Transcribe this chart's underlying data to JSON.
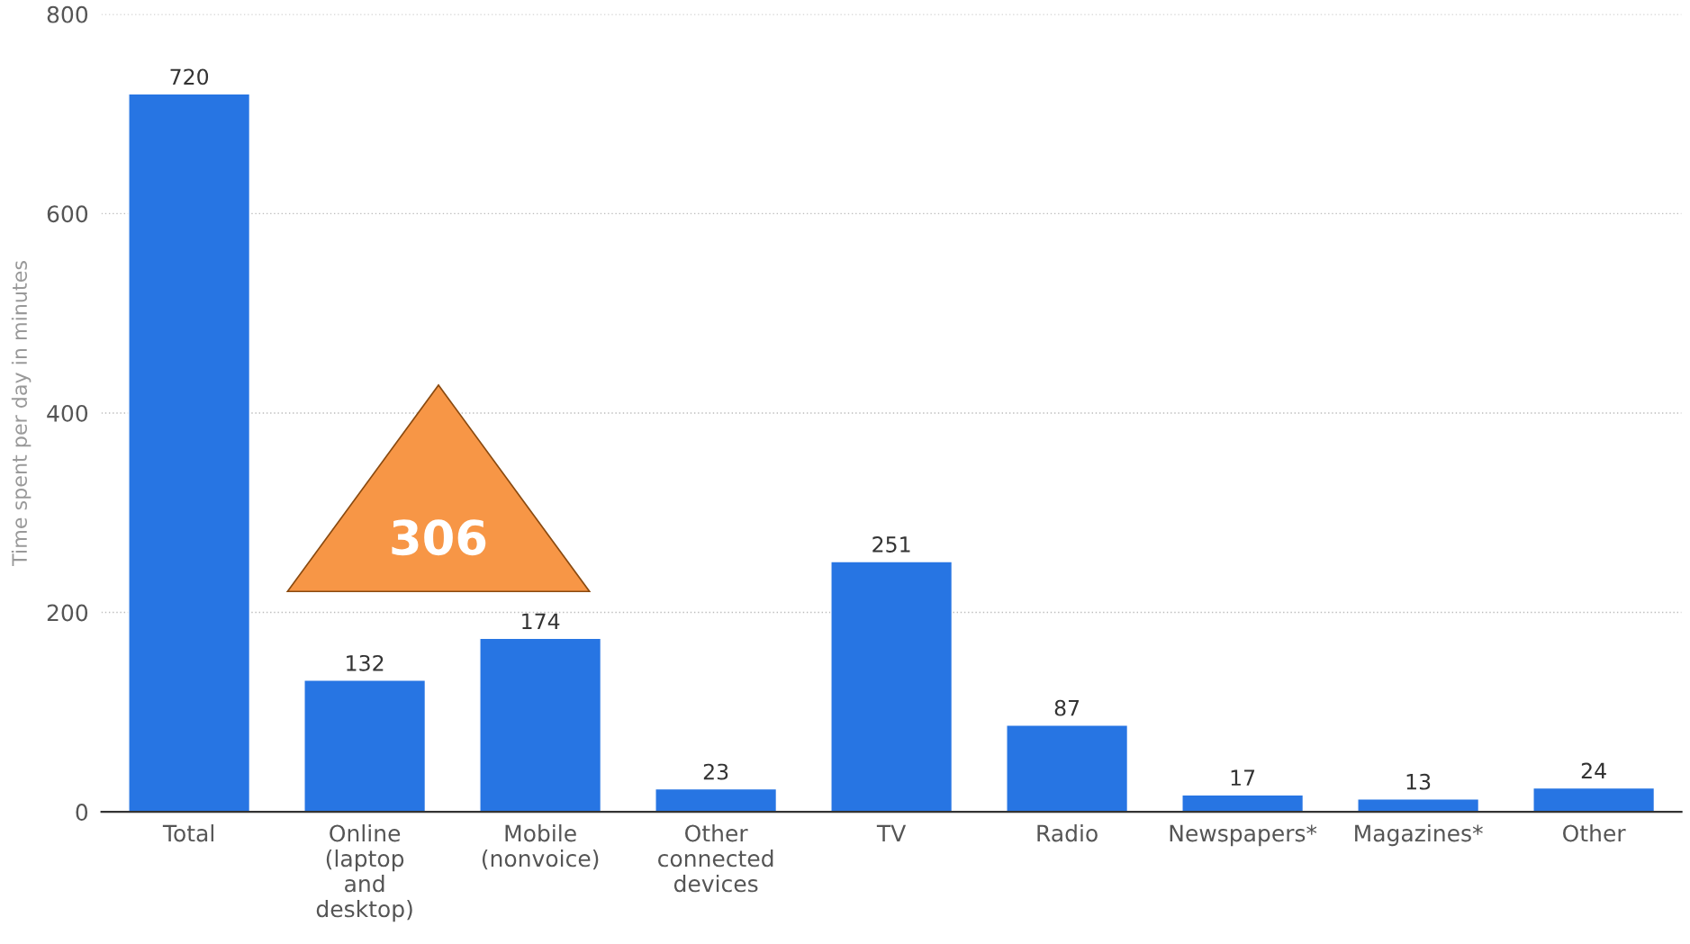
{
  "chart_data": {
    "type": "bar",
    "ylabel": "Time spent per day in minutes",
    "categories": [
      "Total",
      "Online\n(laptop\nand\ndesktop)",
      "Mobile\n(nonvoice)",
      "Other\nconnected\ndevices",
      "TV",
      "Radio",
      "Newspapers*",
      "Magazines*",
      "Other"
    ],
    "values": [
      720,
      132,
      174,
      23,
      251,
      87,
      17,
      13,
      24
    ],
    "color": "#2775e3",
    "ylim": [
      0,
      800
    ],
    "yticks": [
      0,
      200,
      400,
      600,
      800
    ],
    "grid": "y",
    "data_labels": true,
    "annotations": [
      "306"
    ]
  }
}
